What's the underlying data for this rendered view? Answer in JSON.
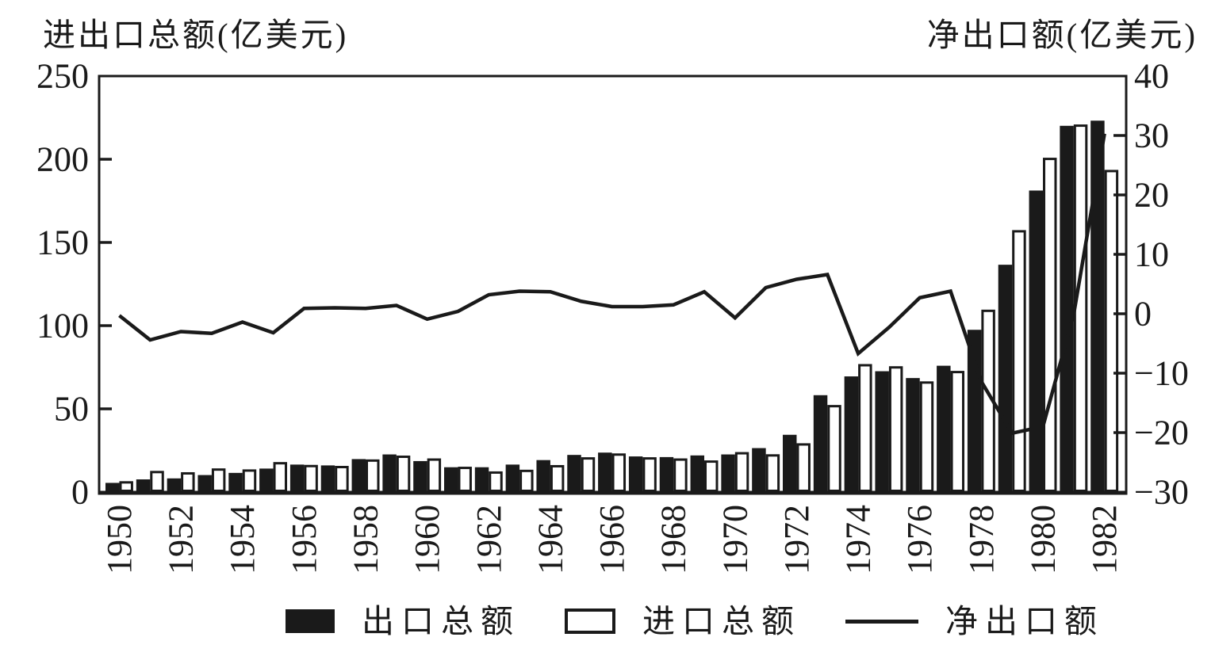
{
  "page": {
    "background": "#ffffff",
    "ink": "#1a1a1a"
  },
  "left_axis_title": "进出口总额(亿美元)",
  "right_axis_title": "净出口额(亿美元)",
  "legend": {
    "items": [
      {
        "label": "出口总额",
        "swatch": "filled-bar"
      },
      {
        "label": "进口总额",
        "swatch": "outlined-bar"
      },
      {
        "label": "净出口额",
        "swatch": "line"
      }
    ]
  },
  "chart_data": {
    "type": "bar",
    "title": "",
    "categories": [
      1950,
      1951,
      1952,
      1953,
      1954,
      1955,
      1956,
      1957,
      1958,
      1959,
      1960,
      1961,
      1962,
      1963,
      1964,
      1965,
      1966,
      1967,
      1968,
      1969,
      1970,
      1971,
      1972,
      1973,
      1974,
      1975,
      1976,
      1977,
      1978,
      1979,
      1980,
      1981,
      1982
    ],
    "x_axis": {
      "tick_labels": [
        "1950",
        "1952",
        "1954",
        "1956",
        "1958",
        "1960",
        "1962",
        "1964",
        "1966",
        "1968",
        "1970",
        "1972",
        "1974",
        "1976",
        "1978",
        "1980",
        "1982"
      ]
    },
    "left_axis": {
      "label": "进出口总额(亿美元)",
      "ticks": [
        0,
        50,
        100,
        150,
        200,
        250
      ],
      "range": [
        0,
        250
      ]
    },
    "right_axis": {
      "label": "净出口额(亿美元)",
      "ticks": [
        -30,
        -20,
        -10,
        0,
        10,
        20,
        30,
        40
      ],
      "range": [
        -30,
        40
      ]
    },
    "grid": false,
    "legend_position": "bottom",
    "series": [
      {
        "name": "出口总额",
        "type": "bar",
        "style": "filled",
        "color": "#1a1a1a",
        "axis": "left",
        "values": [
          5.5,
          7.6,
          8.2,
          10.2,
          11.5,
          14.1,
          16.5,
          16.0,
          19.8,
          22.6,
          18.6,
          14.9,
          14.9,
          16.5,
          19.2,
          22.3,
          23.7,
          21.4,
          21.0,
          22.0,
          22.6,
          26.4,
          34.4,
          58.2,
          69.5,
          72.6,
          68.5,
          75.9,
          97.5,
          136.6,
          181.2,
          220.1,
          223.2
        ]
      },
      {
        "name": "进口总额",
        "type": "bar",
        "style": "outlined",
        "color": "#ffffff",
        "axis": "left",
        "values": [
          5.8,
          12.0,
          11.2,
          13.5,
          12.9,
          17.3,
          15.6,
          15.0,
          18.9,
          21.2,
          19.5,
          14.5,
          11.7,
          12.7,
          15.5,
          20.2,
          22.5,
          20.2,
          19.5,
          18.3,
          23.3,
          22.0,
          28.6,
          51.6,
          76.2,
          74.9,
          65.8,
          72.1,
          108.9,
          156.7,
          200.2,
          220.2,
          192.9
        ]
      },
      {
        "name": "净出口额",
        "type": "line",
        "color": "#1a1a1a",
        "axis": "right",
        "values": [
          -0.3,
          -4.4,
          -3.0,
          -3.3,
          -1.4,
          -3.2,
          0.9,
          1.0,
          0.9,
          1.4,
          -0.9,
          0.4,
          3.2,
          3.8,
          3.7,
          2.1,
          1.2,
          1.2,
          1.5,
          3.7,
          -0.7,
          4.4,
          5.8,
          6.6,
          -6.7,
          -2.3,
          2.7,
          3.8,
          -11.4,
          -20.1,
          -19.0,
          -0.1,
          30.3
        ]
      }
    ]
  }
}
